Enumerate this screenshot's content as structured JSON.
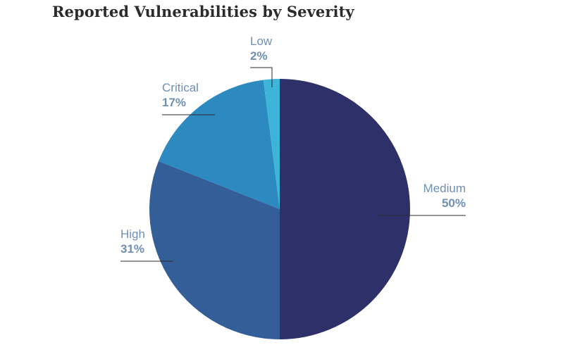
{
  "chart_data": {
    "type": "pie",
    "title": "Reported Vulnerabilities by Severity",
    "slices": [
      {
        "name": "Medium",
        "value": 50,
        "label": "50%",
        "color": "#2e3169"
      },
      {
        "name": "High",
        "value": 31,
        "label": "31%",
        "color": "#335e97"
      },
      {
        "name": "Critical",
        "value": 17,
        "label": "17%",
        "color": "#2d8ac0"
      },
      {
        "name": "Low",
        "value": 2,
        "label": "2%",
        "color": "#3cb5d8"
      }
    ],
    "start": "12 o'clock",
    "direction": "clockwise",
    "legend": "none"
  }
}
